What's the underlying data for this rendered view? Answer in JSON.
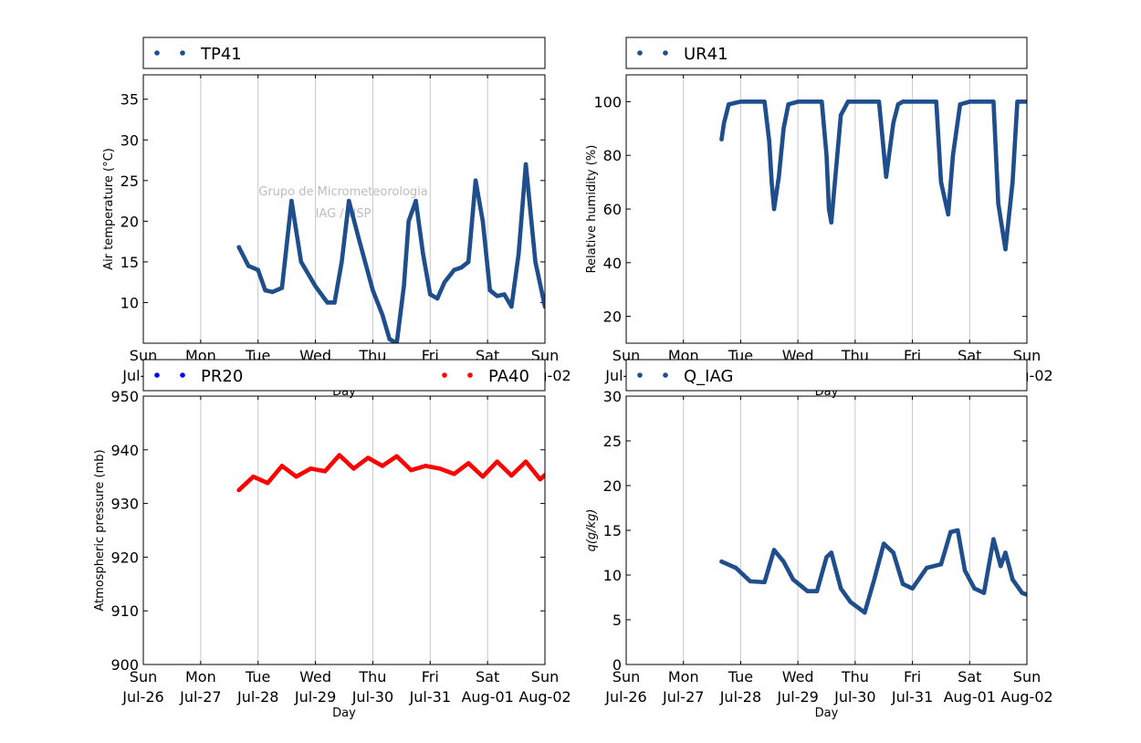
{
  "figure": {
    "watermark_line1": "Grupo de Micrometeorologia",
    "watermark_line2": "IAG / USP"
  },
  "x_axis": {
    "label": "Day",
    "range_days": [
      "2015-07-26",
      "2015-08-02"
    ],
    "ticks": [
      {
        "date": "2015-07-26",
        "day": "Sun",
        "date_label": "Jul-26"
      },
      {
        "date": "2015-07-27",
        "day": "Mon",
        "date_label": "Jul-27"
      },
      {
        "date": "2015-07-28",
        "day": "Tue",
        "date_label": "Jul-28"
      },
      {
        "date": "2015-07-29",
        "day": "Wed",
        "date_label": "Jul-29"
      },
      {
        "date": "2015-07-30",
        "day": "Thu",
        "date_label": "Jul-30"
      },
      {
        "date": "2015-07-31",
        "day": "Fri",
        "date_label": "Jul-31"
      },
      {
        "date": "2015-08-01",
        "day": "Sat",
        "date_label": "Aug-01"
      },
      {
        "date": "2015-08-02",
        "day": "Sun",
        "date_label": "Aug-02"
      }
    ]
  },
  "chart_data": [
    {
      "id": "temperature",
      "type": "scatter",
      "ylabel": "Air temperature (°C)",
      "ylim": [
        5,
        38
      ],
      "yticks": [
        10,
        15,
        20,
        25,
        30,
        35
      ],
      "grid": "vertical",
      "legend_placement": "above",
      "series": [
        {
          "name": "TP41",
          "color": "#1f4e8c",
          "x": [
            "2015-07-27 16:00",
            "2015-07-27 20:00",
            "2015-07-28 00:00",
            "2015-07-28 03:00",
            "2015-07-28 06:00",
            "2015-07-28 10:00",
            "2015-07-28 14:00",
            "2015-07-28 18:00",
            "2015-07-29 00:00",
            "2015-07-29 05:00",
            "2015-07-29 08:00",
            "2015-07-29 11:00",
            "2015-07-29 14:00",
            "2015-07-29 18:00",
            "2015-07-30 00:00",
            "2015-07-30 04:00",
            "2015-07-30 07:00",
            "2015-07-30 10:00",
            "2015-07-30 13:00",
            "2015-07-30 15:00",
            "2015-07-30 18:00",
            "2015-07-30 21:00",
            "2015-07-31 00:00",
            "2015-07-31 03:00",
            "2015-07-31 06:00",
            "2015-07-31 10:00",
            "2015-07-31 13:00",
            "2015-07-31 16:00",
            "2015-07-31 19:00",
            "2015-07-31 22:00",
            "2015-08-01 01:00",
            "2015-08-01 04:00",
            "2015-08-01 07:00",
            "2015-08-01 10:00",
            "2015-08-01 13:00",
            "2015-08-01 16:00",
            "2015-08-01 20:00",
            "2015-08-02 00:00"
          ],
          "y": [
            16.8,
            14.5,
            14.0,
            11.5,
            11.3,
            11.8,
            22.5,
            15.0,
            12.0,
            10.0,
            10.0,
            15.0,
            22.5,
            18.0,
            11.5,
            8.5,
            5.5,
            5.0,
            12.0,
            20.0,
            22.5,
            16.0,
            11.0,
            10.5,
            12.5,
            14.0,
            14.3,
            15.0,
            25.0,
            20.0,
            11.5,
            10.8,
            11.0,
            9.5,
            16.0,
            27.0,
            15.0,
            9.5
          ]
        }
      ]
    },
    {
      "id": "humidity",
      "type": "scatter",
      "ylabel": "Relative humidity (%)",
      "ylim": [
        10,
        110
      ],
      "yticks": [
        20,
        40,
        60,
        80,
        100
      ],
      "grid": "vertical",
      "legend_placement": "above",
      "series": [
        {
          "name": "UR41",
          "color": "#1f4e8c",
          "x": [
            "2015-07-27 16:00",
            "2015-07-27 17:00",
            "2015-07-27 19:00",
            "2015-07-28 00:00",
            "2015-07-28 10:00",
            "2015-07-28 12:00",
            "2015-07-28 13:00",
            "2015-07-28 14:00",
            "2015-07-28 16:00",
            "2015-07-28 18:00",
            "2015-07-28 20:00",
            "2015-07-29 00:00",
            "2015-07-29 10:00",
            "2015-07-29 12:00",
            "2015-07-29 13:00",
            "2015-07-29 14:00",
            "2015-07-29 16:00",
            "2015-07-29 18:00",
            "2015-07-29 21:00",
            "2015-07-30 00:00",
            "2015-07-30 10:00",
            "2015-07-30 13:00",
            "2015-07-30 16:00",
            "2015-07-30 18:00",
            "2015-07-30 20:00",
            "2015-07-31 00:00",
            "2015-07-31 10:00",
            "2015-07-31 12:00",
            "2015-07-31 15:00",
            "2015-07-31 17:00",
            "2015-07-31 20:00",
            "2015-08-01 00:00",
            "2015-08-01 10:00",
            "2015-08-01 12:00",
            "2015-08-01 15:00",
            "2015-08-01 18:00",
            "2015-08-01 20:00",
            "2015-08-02 00:00"
          ],
          "y": [
            86,
            92,
            99,
            100,
            100,
            85,
            70,
            60,
            72,
            90,
            99,
            100,
            100,
            80,
            60,
            55,
            75,
            95,
            100,
            100,
            100,
            72,
            92,
            99,
            100,
            100,
            100,
            70,
            58,
            80,
            99,
            100,
            100,
            62,
            45,
            70,
            100,
            100
          ]
        }
      ]
    },
    {
      "id": "pressure",
      "type": "scatter",
      "ylabel": "Atmospheric pressure (mb)",
      "ylim": [
        900,
        950
      ],
      "yticks": [
        900,
        910,
        920,
        930,
        940,
        950
      ],
      "grid": "vertical",
      "legend_placement": "above",
      "series": [
        {
          "name": "PR20",
          "color": "#0000ff",
          "x": [],
          "y": []
        },
        {
          "name": "PA40",
          "color": "#ff0000",
          "x": [
            "2015-07-27 16:00",
            "2015-07-27 22:00",
            "2015-07-28 04:00",
            "2015-07-28 10:00",
            "2015-07-28 16:00",
            "2015-07-28 22:00",
            "2015-07-29 04:00",
            "2015-07-29 10:00",
            "2015-07-29 16:00",
            "2015-07-29 22:00",
            "2015-07-30 04:00",
            "2015-07-30 10:00",
            "2015-07-30 16:00",
            "2015-07-30 22:00",
            "2015-07-31 04:00",
            "2015-07-31 10:00",
            "2015-07-31 16:00",
            "2015-07-31 22:00",
            "2015-08-01 04:00",
            "2015-08-01 10:00",
            "2015-08-01 16:00",
            "2015-08-01 22:00",
            "2015-08-02 00:00"
          ],
          "y": [
            932.5,
            935.0,
            933.8,
            937.0,
            935.0,
            936.5,
            936.0,
            939.0,
            936.5,
            938.5,
            937.0,
            938.8,
            936.2,
            937.0,
            936.5,
            935.5,
            937.5,
            935.0,
            937.8,
            935.2,
            937.8,
            934.5,
            935.3
          ]
        }
      ]
    },
    {
      "id": "specific_humidity",
      "type": "scatter",
      "ylabel": "q(g/kg)",
      "ylim": [
        0,
        30
      ],
      "yticks": [
        0,
        5,
        10,
        15,
        20,
        25,
        30
      ],
      "grid": "vertical",
      "legend_placement": "above",
      "series": [
        {
          "name": "Q_IAG",
          "color": "#1f4e8c",
          "x": [
            "2015-07-27 16:00",
            "2015-07-27 22:00",
            "2015-07-28 04:00",
            "2015-07-28 10:00",
            "2015-07-28 14:00",
            "2015-07-28 18:00",
            "2015-07-28 22:00",
            "2015-07-29 04:00",
            "2015-07-29 08:00",
            "2015-07-29 12:00",
            "2015-07-29 14:00",
            "2015-07-29 18:00",
            "2015-07-29 22:00",
            "2015-07-30 04:00",
            "2015-07-30 08:00",
            "2015-07-30 12:00",
            "2015-07-30 16:00",
            "2015-07-30 20:00",
            "2015-07-31 00:00",
            "2015-07-31 06:00",
            "2015-07-31 12:00",
            "2015-07-31 16:00",
            "2015-07-31 19:00",
            "2015-07-31 22:00",
            "2015-08-01 02:00",
            "2015-08-01 06:00",
            "2015-08-01 10:00",
            "2015-08-01 13:00",
            "2015-08-01 15:00",
            "2015-08-01 18:00",
            "2015-08-01 22:00",
            "2015-08-02 00:00"
          ],
          "y": [
            11.5,
            10.8,
            9.3,
            9.2,
            12.8,
            11.5,
            9.5,
            8.2,
            8.2,
            12.0,
            12.5,
            8.5,
            7.0,
            5.8,
            9.5,
            13.5,
            12.5,
            9.0,
            8.5,
            10.8,
            11.2,
            14.8,
            15.0,
            10.5,
            8.5,
            8.0,
            14.0,
            11.0,
            12.5,
            9.5,
            8.0,
            7.8
          ]
        }
      ]
    }
  ]
}
